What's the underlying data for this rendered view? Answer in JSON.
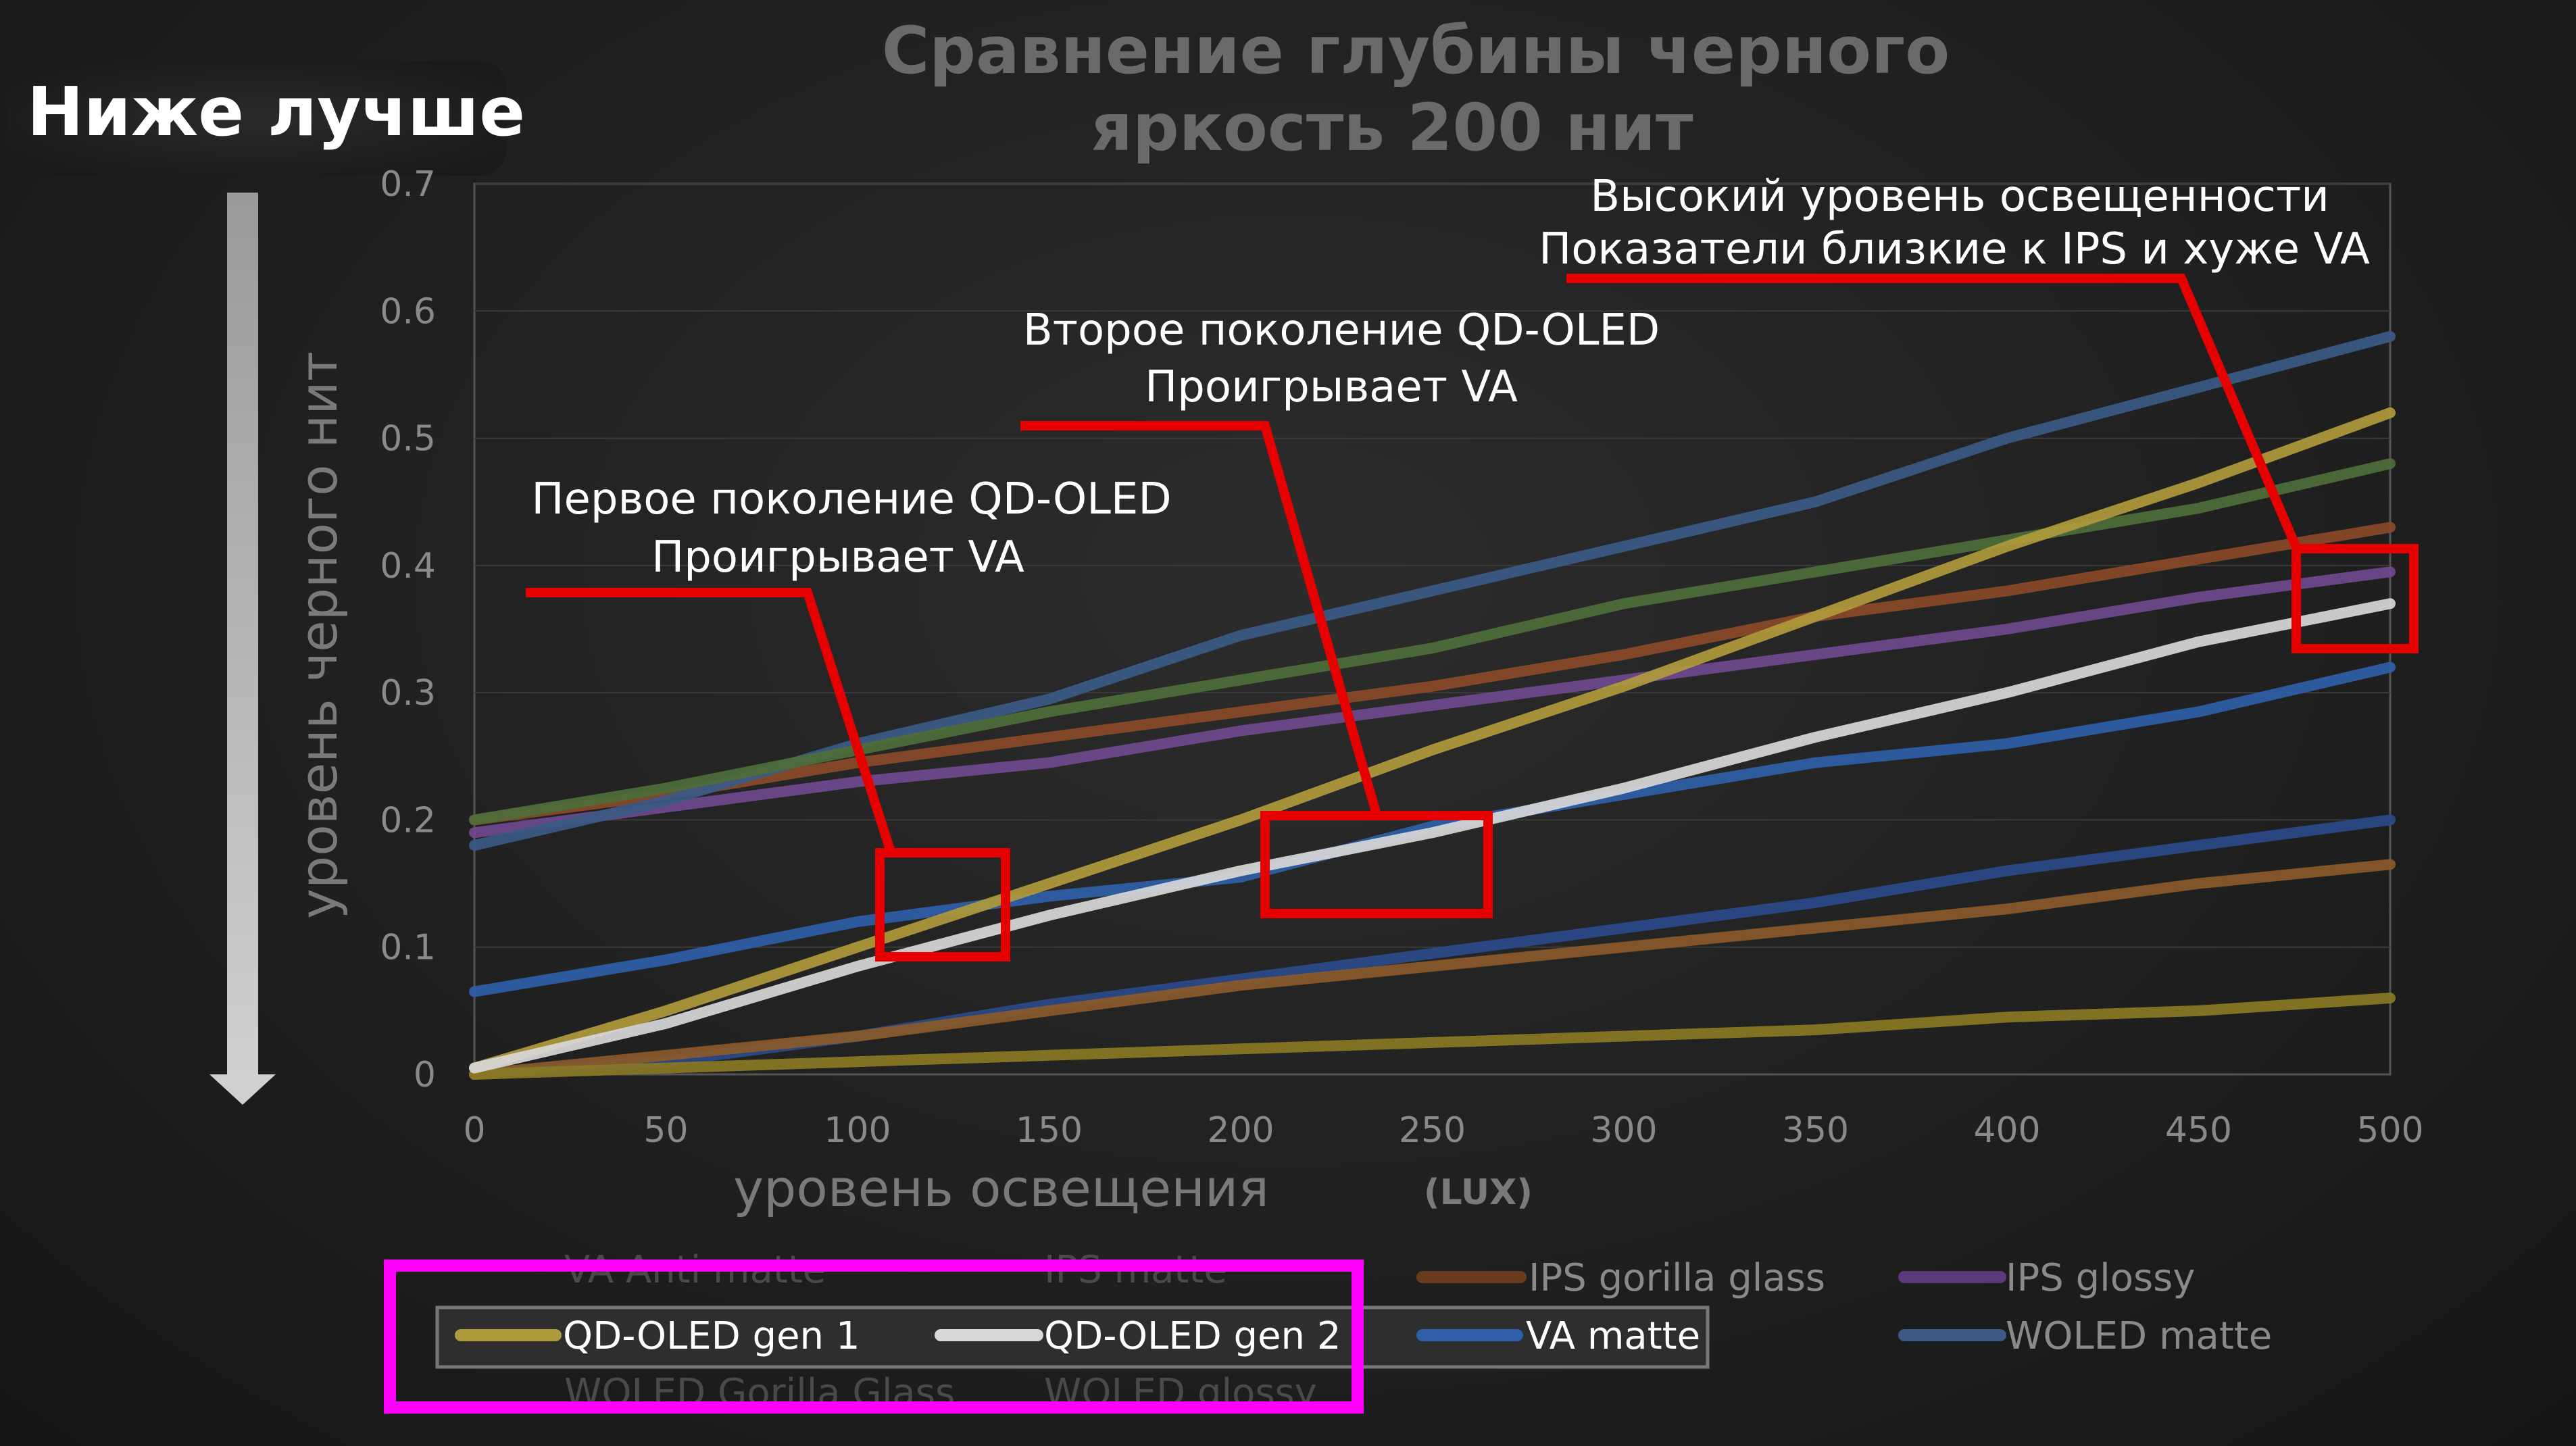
{
  "badge": {
    "text": "Ниже лучше"
  },
  "chart_data": {
    "type": "line",
    "title": [
      "Сравнение глубины черного",
      "яркость 200 нит"
    ],
    "xlabel": "уровень освещения",
    "xunit": "(LUX)",
    "ylabel": "уровень черного нит",
    "xlim": [
      0,
      500
    ],
    "ylim": [
      0,
      0.7
    ],
    "xticks": [
      "0",
      "50",
      "100",
      "150",
      "200",
      "250",
      "300",
      "350",
      "400",
      "450",
      "500"
    ],
    "yticks": [
      "0",
      "0.1",
      "0.2",
      "0.3",
      "0.4",
      "0.5",
      "0.6",
      "0.7"
    ],
    "x": [
      0,
      50,
      100,
      150,
      200,
      250,
      300,
      350,
      400,
      450,
      500
    ],
    "series": [
      {
        "name": "IPS gorilla glass",
        "color": "#8a4a28",
        "values": [
          0.2,
          0.22,
          0.245,
          0.265,
          0.285,
          0.305,
          0.33,
          0.36,
          0.38,
          0.405,
          0.43
        ]
      },
      {
        "name": "IPS glossy",
        "color": "#6f4a8f",
        "values": [
          0.19,
          0.21,
          0.23,
          0.245,
          0.27,
          0.29,
          0.31,
          0.33,
          0.35,
          0.375,
          0.395
        ]
      },
      {
        "name": "VA matte",
        "color": "#2f5fa8",
        "values": [
          0.065,
          0.09,
          0.12,
          0.14,
          0.155,
          0.195,
          0.22,
          0.245,
          0.26,
          0.285,
          0.32
        ]
      },
      {
        "name": "WOLED matte",
        "color": "#3b5a86",
        "values": [
          0.18,
          0.215,
          0.26,
          0.295,
          0.345,
          0.38,
          0.415,
          0.45,
          0.5,
          0.54,
          0.58
        ]
      },
      {
        "name": "",
        "color": "#4e6e3a",
        "values": [
          0.2,
          0.225,
          0.255,
          0.285,
          0.31,
          0.335,
          0.37,
          0.395,
          0.42,
          0.445,
          0.48
        ]
      },
      {
        "name": "",
        "color": "#2a4a8a",
        "values": [
          0.0,
          0.01,
          0.03,
          0.055,
          0.075,
          0.095,
          0.115,
          0.135,
          0.16,
          0.18,
          0.2
        ]
      },
      {
        "name": "",
        "color": "#8a5a2a",
        "values": [
          0.0,
          0.015,
          0.03,
          0.05,
          0.07,
          0.085,
          0.1,
          0.115,
          0.13,
          0.15,
          0.165
        ]
      },
      {
        "name": "",
        "color": "#8a7a24",
        "values": [
          0.0,
          0.005,
          0.01,
          0.015,
          0.02,
          0.025,
          0.03,
          0.035,
          0.045,
          0.05,
          0.06
        ]
      },
      {
        "name": "QD-OLED gen 1",
        "color": "#b09a3c",
        "values": [
          0.005,
          0.05,
          0.1,
          0.15,
          0.2,
          0.255,
          0.305,
          0.36,
          0.415,
          0.465,
          0.52
        ]
      },
      {
        "name": "QD-OLED gen 2",
        "color": "#d8d8d8",
        "values": [
          0.005,
          0.04,
          0.085,
          0.125,
          0.16,
          0.19,
          0.225,
          0.265,
          0.3,
          0.34,
          0.37
        ]
      }
    ],
    "annotations": [
      {
        "lines": [
          "Первое поколение QD-OLED",
          "Проигрывает VA"
        ]
      },
      {
        "lines": [
          "Второе поколение QD-OLED",
          "Проигрывает VA"
        ]
      },
      {
        "lines": [
          "Высокий уровень освещенности",
          "Показатели близкие к IPS и хуже VA"
        ]
      }
    ],
    "legend": {
      "top_faint": [
        "VA Anti matte",
        "IPS matte"
      ],
      "row1": [
        "IPS gorilla glass",
        "IPS glossy"
      ],
      "row2": [
        "QD-OLED gen 1",
        "QD-OLED gen 2",
        "VA matte",
        "WOLED matte"
      ],
      "bottom_faint": [
        "WOLED Gorilla Glass",
        "WOLED glossy"
      ]
    },
    "highlight_color": "#e60000",
    "legend_highlight_color": "#ff00ff"
  }
}
